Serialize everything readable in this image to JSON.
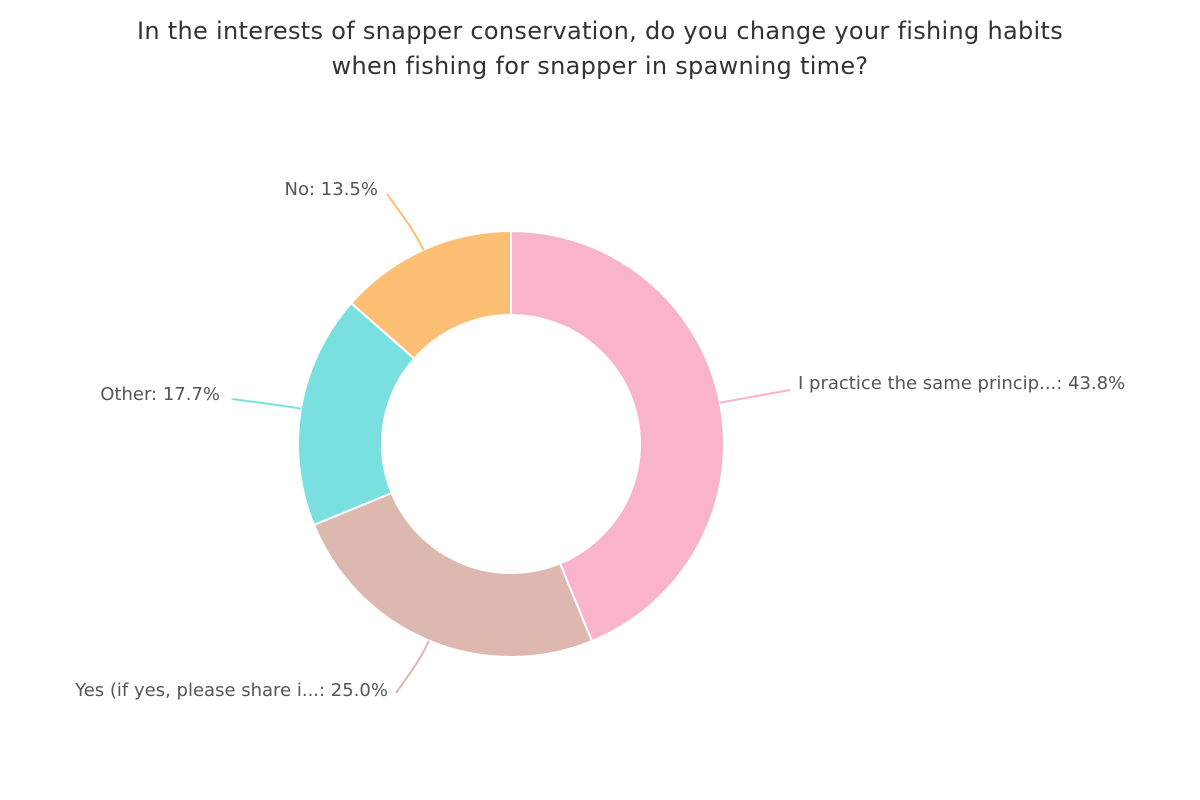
{
  "chart_data": {
    "type": "pie",
    "variant": "donut",
    "title_lines": [
      "In the interests of snapper conservation, do you change your fishing habits",
      "when fishing for snapper in spawning time?"
    ],
    "slices": [
      {
        "label": "I practice the same princip...",
        "value": 43.8,
        "display": "I practice the same princip...: 43.8%",
        "color": "#f9b4cb"
      },
      {
        "label": "Yes (if yes, please share i...",
        "value": 25.0,
        "display": "Yes (if yes, please share i...: 25.0%",
        "color": "#dcb8af"
      },
      {
        "label": "Other",
        "value": 17.7,
        "display": "Other: 17.7%",
        "color": "#7ae0df"
      },
      {
        "label": "No",
        "value": 13.5,
        "display": "No: 13.5%",
        "color": "#fdbf74"
      }
    ],
    "start_angle": "12 o'clock",
    "direction": "clockwise",
    "legend": "none",
    "data_labels": "outside with leader lines"
  }
}
